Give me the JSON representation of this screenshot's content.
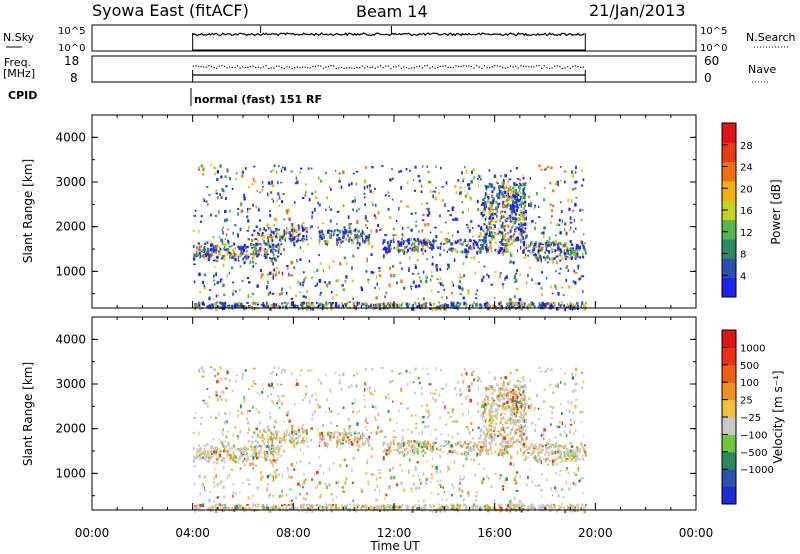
{
  "header": {
    "station": "Syowa East (fitACF)",
    "beam": "Beam 14",
    "date": "21/Jan/2013"
  },
  "side_labels": {
    "nsky": "N.Sky",
    "freq": "Freq.",
    "freq_unit": "[MHz]",
    "cpid": "CPID",
    "nsearch": "N.Search",
    "nave": "Nave"
  },
  "strip_ticks": {
    "nsky_left": [
      "10^5",
      "10^0"
    ],
    "nsky_right": [
      "10^5",
      "10^0"
    ],
    "freq_left": [
      "18",
      "8"
    ],
    "nave_right": [
      "60",
      "0"
    ]
  },
  "cpid_text": "normal (fast) 151 RF",
  "chart_data": [
    {
      "type": "heatmap",
      "name": "power",
      "ylabel": "Slant Range [km]",
      "ylim": [
        180,
        4500
      ],
      "yticks": [
        "1000",
        "2000",
        "3000",
        "4000"
      ],
      "xlim_hours": [
        0,
        24
      ],
      "colorbar": {
        "label": "Power [dB]",
        "range": [
          0,
          32
        ],
        "ticks": [
          "4",
          "8",
          "12",
          "16",
          "20",
          "24",
          "28"
        ],
        "colors": [
          "#1e20f4",
          "#2a4fb4",
          "#2c8a66",
          "#52b84a",
          "#c3d320",
          "#f2b010",
          "#f07010",
          "#ea3a12",
          "#e01414"
        ]
      },
      "data_extent_hours": [
        4.0,
        19.6
      ],
      "echo_bands": [
        {
          "t": [
            4.0,
            19.6
          ],
          "r": [
            190,
            330
          ],
          "note": "ground scatter near range"
        },
        {
          "t": [
            4.0,
            7.5
          ],
          "r": [
            1300,
            1650
          ]
        },
        {
          "t": [
            6.5,
            8.5
          ],
          "r": [
            1700,
            2000
          ]
        },
        {
          "t": [
            9.0,
            11.0
          ],
          "r": [
            1650,
            1950
          ]
        },
        {
          "t": [
            11.5,
            16.5
          ],
          "r": [
            1450,
            1750
          ]
        },
        {
          "t": [
            15.5,
            17.2
          ],
          "r": [
            1700,
            3000
          ]
        },
        {
          "t": [
            17.0,
            19.6
          ],
          "r": [
            1300,
            1700
          ]
        }
      ]
    },
    {
      "type": "heatmap",
      "name": "velocity",
      "ylabel": "Slant Range [km]",
      "ylim": [
        180,
        4500
      ],
      "yticks": [
        "1000",
        "2000",
        "3000",
        "4000"
      ],
      "xlim_hours": [
        0,
        24
      ],
      "xlabel": "Time UT",
      "xticks": [
        "00:00",
        "04:00",
        "08:00",
        "12:00",
        "16:00",
        "20:00",
        "00:00"
      ],
      "colorbar": {
        "label": "Velocity [m s⁻¹]",
        "ticks": [
          "1000",
          "500",
          "100",
          "25",
          "−25",
          "−100",
          "−500",
          "−1000"
        ],
        "colors": [
          "#1e2ad8",
          "#2a50b0",
          "#2c8a5c",
          "#6cc83c",
          "#c8c8c8",
          "#f2c040",
          "#f09020",
          "#f06010",
          "#ec3010",
          "#e01414"
        ]
      },
      "data_extent_hours": [
        4.0,
        19.6
      ]
    }
  ]
}
